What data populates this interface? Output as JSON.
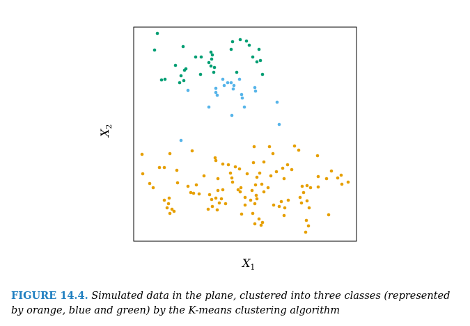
{
  "caption": {
    "label": "FIGURE 14.4.",
    "text": "Simulated data in the plane, clustered into three classes (represented by orange, blue and green) by the K-means clustering algorithm"
  },
  "chart_data": {
    "type": "scatter",
    "title": "",
    "xlabel": "X",
    "xlabel_sub": "1",
    "ylabel": "X",
    "ylabel_sub": "2",
    "grid": false,
    "xlim": [
      0,
      320
    ],
    "ylim": [
      0,
      308
    ],
    "ticks": "none",
    "series": [
      {
        "color": "#009e73",
        "points": [
          [
            34,
            299
          ],
          [
            30,
            275
          ],
          [
            71,
            280
          ],
          [
            89,
            265
          ],
          [
            97,
            265
          ],
          [
            111,
            272
          ],
          [
            112,
            262
          ],
          [
            113,
            268
          ],
          [
            142,
            287
          ],
          [
            140,
            276
          ],
          [
            153,
            290
          ],
          [
            162,
            288
          ],
          [
            166,
            282
          ],
          [
            180,
            276
          ],
          [
            171,
            265
          ],
          [
            177,
            258
          ],
          [
            182,
            260
          ],
          [
            60,
            253
          ],
          [
            75,
            248
          ],
          [
            73,
            246
          ],
          [
            108,
            257
          ],
          [
            111,
            252
          ],
          [
            116,
            250
          ],
          [
            115,
            243
          ],
          [
            148,
            243
          ],
          [
            96,
            240
          ],
          [
            68,
            238
          ],
          [
            72,
            231
          ],
          [
            45,
            233
          ],
          [
            40,
            232
          ],
          [
            66,
            228
          ],
          [
            185,
            240
          ]
        ]
      },
      {
        "color": "#56b4e9",
        "points": [
          [
            128,
            233
          ],
          [
            135,
            228
          ],
          [
            130,
            224
          ],
          [
            140,
            228
          ],
          [
            144,
            224
          ],
          [
            143,
            219
          ],
          [
            152,
            233
          ],
          [
            118,
            220
          ],
          [
            155,
            211
          ],
          [
            174,
            221
          ],
          [
            175,
            216
          ],
          [
            118,
            214
          ],
          [
            120,
            210
          ],
          [
            78,
            217
          ],
          [
            156,
            206
          ],
          [
            206,
            200
          ],
          [
            159,
            193
          ],
          [
            108,
            193
          ],
          [
            141,
            181
          ],
          [
            209,
            168
          ],
          [
            68,
            145
          ]
        ]
      },
      {
        "color": "#e69f00",
        "points": [
          [
            12,
            125
          ],
          [
            52,
            126
          ],
          [
            84,
            130
          ],
          [
            117,
            120
          ],
          [
            118,
            116
          ],
          [
            136,
            110
          ],
          [
            173,
            136
          ],
          [
            195,
            136
          ],
          [
            200,
            126
          ],
          [
            231,
            137
          ],
          [
            237,
            131
          ],
          [
            264,
            123
          ],
          [
            293,
            91
          ],
          [
            37,
            106
          ],
          [
            44,
            106
          ],
          [
            62,
            102
          ],
          [
            128,
            111
          ],
          [
            146,
            107
          ],
          [
            172,
            113
          ],
          [
            187,
            114
          ],
          [
            214,
            105
          ],
          [
            221,
            110
          ],
          [
            227,
            103
          ],
          [
            23,
            83
          ],
          [
            13,
            97
          ],
          [
            28,
            77
          ],
          [
            63,
            84
          ],
          [
            101,
            94
          ],
          [
            121,
            90
          ],
          [
            139,
            98
          ],
          [
            141,
            91
          ],
          [
            152,
            104
          ],
          [
            163,
            97
          ],
          [
            177,
            92
          ],
          [
            181,
            98
          ],
          [
            184,
            82
          ],
          [
            197,
            94
          ],
          [
            216,
            90
          ],
          [
            205,
            100
          ],
          [
            242,
            79
          ],
          [
            249,
            80
          ],
          [
            244,
            70
          ],
          [
            265,
            93
          ],
          [
            277,
            90
          ],
          [
            284,
            101
          ],
          [
            298,
            95
          ],
          [
            308,
            85
          ],
          [
            299,
            82
          ],
          [
            254,
            77
          ],
          [
            265,
            78
          ],
          [
            90,
            81
          ],
          [
            86,
            69
          ],
          [
            78,
            79
          ],
          [
            94,
            68
          ],
          [
            82,
            70
          ],
          [
            112,
            60
          ],
          [
            118,
            62
          ],
          [
            126,
            61
          ],
          [
            121,
            73
          ],
          [
            128,
            74
          ],
          [
            142,
            85
          ],
          [
            150,
            74
          ],
          [
            153,
            71
          ],
          [
            154,
            77
          ],
          [
            160,
            63
          ],
          [
            175,
            81
          ],
          [
            170,
            73
          ],
          [
            187,
            71
          ],
          [
            193,
            77
          ],
          [
            176,
            66
          ],
          [
            51,
            62
          ],
          [
            44,
            59
          ],
          [
            109,
            67
          ],
          [
            50,
            54
          ],
          [
            113,
            50
          ],
          [
            120,
            45
          ],
          [
            123,
            55
          ],
          [
            132,
            54
          ],
          [
            160,
            52
          ],
          [
            168,
            59
          ],
          [
            174,
            54
          ],
          [
            177,
            61
          ],
          [
            212,
            57
          ],
          [
            222,
            59
          ],
          [
            239,
            63
          ],
          [
            241,
            55
          ],
          [
            249,
            58
          ],
          [
            252,
            48
          ],
          [
            217,
            48
          ],
          [
            209,
            50
          ],
          [
            201,
            52
          ],
          [
            107,
            46
          ],
          [
            55,
            46
          ],
          [
            48,
            48
          ],
          [
            52,
            40
          ],
          [
            58,
            43
          ],
          [
            171,
            40
          ],
          [
            155,
            39
          ],
          [
            180,
            32
          ],
          [
            185,
            27
          ],
          [
            174,
            25
          ],
          [
            216,
            37
          ],
          [
            248,
            30
          ],
          [
            280,
            38
          ],
          [
            183,
            23
          ],
          [
            251,
            22
          ],
          [
            247,
            13
          ]
        ]
      }
    ]
  }
}
